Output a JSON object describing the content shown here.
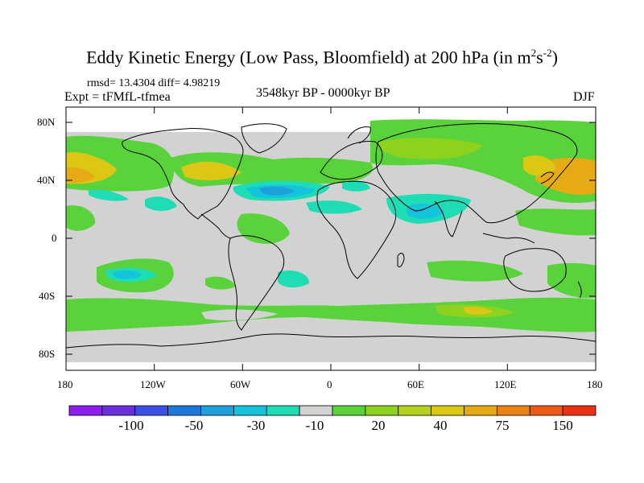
{
  "title": {
    "main": "Eddy Kinetic Energy (Low Pass, Bloomfield) at 200 hPa (in m",
    "sup1": "2",
    "mid": "s",
    "sup2": "-2",
    "close": ")"
  },
  "stats": "rmsd= 13.4304 diff= 4.98219",
  "experiment": "Expt = tFMfL-tfmea",
  "period": "3548kyr BP - 0000kyr BP",
  "season": "DJF",
  "axes": {
    "lat_ticks": [
      "80N",
      "40N",
      "0",
      "40S",
      "80S"
    ],
    "lon_ticks": [
      "180",
      "120W",
      "60W",
      "0",
      "60E",
      "120E",
      "180"
    ]
  },
  "colorbar": {
    "labels": [
      "-100",
      "-50",
      "-30",
      "-10",
      "20",
      "40",
      "75",
      "150"
    ],
    "colors": [
      "#8c1ef0",
      "#6a2fdc",
      "#3c50e6",
      "#1e78dc",
      "#1ea0dc",
      "#14c3dc",
      "#1edcb4",
      "#d2d2d2",
      "#5ad23c",
      "#8cd21e",
      "#b4d21e",
      "#dcc814",
      "#e6aa14",
      "#eb8214",
      "#ee5a14",
      "#eb3214"
    ]
  },
  "colors": {
    "background": "#ffffff",
    "land_neutral": "#d2d2d2",
    "green": "#5ad23c",
    "light_green": "#8cd21e",
    "yellow": "#dcc814",
    "orange": "#e6aa14",
    "cyan": "#1edcb4",
    "light_blue": "#14c3dc",
    "blue": "#1ea0dc"
  }
}
